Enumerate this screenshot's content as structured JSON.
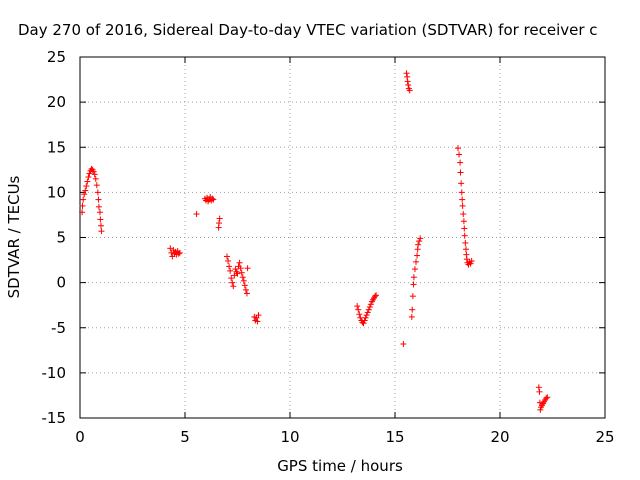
{
  "chart_data": {
    "type": "scatter",
    "title": "Day 270 of 2016, Sidereal Day-to-day VTEC variation (SDTVAR) for receiver c",
    "xlabel": "GPS time / hours",
    "ylabel": "SDTVAR / TECUs",
    "xlim": [
      0,
      25
    ],
    "ylim": [
      -15,
      25
    ],
    "x_ticks": [
      "0",
      "5",
      "10",
      "15",
      "20",
      "25"
    ],
    "y_ticks": [
      "-15",
      "-10",
      "-5",
      "0",
      "5",
      "10",
      "15",
      "20",
      "25"
    ],
    "grid": true,
    "marker": "plus",
    "marker_color": "#ff0000",
    "series": [
      {
        "points": [
          [
            0.1,
            7.8
          ],
          [
            0.12,
            8.5
          ],
          [
            0.15,
            9.2
          ],
          [
            0.2,
            9.8
          ],
          [
            0.25,
            10.2
          ],
          [
            0.3,
            10.7
          ],
          [
            0.35,
            11.2
          ],
          [
            0.4,
            11.7
          ],
          [
            0.45,
            12.1
          ],
          [
            0.5,
            12.4
          ],
          [
            0.55,
            12.6
          ],
          [
            0.6,
            12.5
          ],
          [
            0.65,
            12.3
          ],
          [
            0.7,
            12.0
          ],
          [
            0.75,
            11.5
          ],
          [
            0.8,
            10.8
          ],
          [
            0.85,
            10.0
          ],
          [
            0.88,
            9.2
          ],
          [
            0.9,
            8.4
          ],
          [
            0.95,
            7.8
          ],
          [
            0.97,
            7.0
          ],
          [
            1.0,
            6.3
          ],
          [
            1.02,
            5.7
          ],
          [
            4.3,
            3.8
          ],
          [
            4.35,
            3.3
          ],
          [
            4.4,
            2.9
          ],
          [
            4.45,
            3.6
          ],
          [
            4.5,
            3.2
          ],
          [
            4.55,
            3.4
          ],
          [
            4.6,
            3.1
          ],
          [
            4.65,
            3.5
          ],
          [
            4.7,
            3.2
          ],
          [
            4.75,
            3.3
          ],
          [
            5.55,
            7.6
          ],
          [
            5.95,
            9.3
          ],
          [
            6.0,
            9.1
          ],
          [
            6.05,
            9.4
          ],
          [
            6.1,
            9.0
          ],
          [
            6.15,
            9.2
          ],
          [
            6.2,
            9.5
          ],
          [
            6.25,
            9.1
          ],
          [
            6.3,
            9.3
          ],
          [
            6.35,
            9.2
          ],
          [
            6.6,
            6.1
          ],
          [
            6.62,
            6.6
          ],
          [
            6.65,
            7.1
          ],
          [
            7.0,
            2.9
          ],
          [
            7.05,
            2.4
          ],
          [
            7.1,
            1.8
          ],
          [
            7.15,
            1.3
          ],
          [
            7.2,
            0.5
          ],
          [
            7.25,
            0.0
          ],
          [
            7.3,
            -0.4
          ],
          [
            7.35,
            0.8
          ],
          [
            7.4,
            1.5
          ],
          [
            7.45,
            1.2
          ],
          [
            7.5,
            1.0
          ],
          [
            7.55,
            1.8
          ],
          [
            7.6,
            2.2
          ],
          [
            7.65,
            1.6
          ],
          [
            7.7,
            1.1
          ],
          [
            7.75,
            0.6
          ],
          [
            7.8,
            0.2
          ],
          [
            7.85,
            -0.3
          ],
          [
            7.9,
            -0.8
          ],
          [
            7.95,
            -1.2
          ],
          [
            7.98,
            1.6
          ],
          [
            8.3,
            -3.8
          ],
          [
            8.35,
            -4.2
          ],
          [
            8.4,
            -3.9
          ],
          [
            8.45,
            -4.3
          ],
          [
            8.5,
            -3.6
          ],
          [
            13.2,
            -2.6
          ],
          [
            13.25,
            -3.0
          ],
          [
            13.3,
            -3.5
          ],
          [
            13.35,
            -3.9
          ],
          [
            13.4,
            -4.2
          ],
          [
            13.45,
            -4.4
          ],
          [
            13.5,
            -4.5
          ],
          [
            13.55,
            -4.2
          ],
          [
            13.6,
            -3.9
          ],
          [
            13.65,
            -3.6
          ],
          [
            13.7,
            -3.3
          ],
          [
            13.75,
            -3.0
          ],
          [
            13.8,
            -2.7
          ],
          [
            13.85,
            -2.4
          ],
          [
            13.9,
            -2.1
          ],
          [
            13.95,
            -1.9
          ],
          [
            14.0,
            -1.7
          ],
          [
            14.05,
            -1.5
          ],
          [
            14.1,
            -1.4
          ],
          [
            15.4,
            -6.8
          ],
          [
            15.55,
            23.2
          ],
          [
            15.58,
            22.8
          ],
          [
            15.6,
            22.3
          ],
          [
            15.63,
            21.9
          ],
          [
            15.66,
            21.5
          ],
          [
            15.7,
            21.3
          ],
          [
            15.8,
            -3.8
          ],
          [
            15.82,
            -3.0
          ],
          [
            15.85,
            -1.5
          ],
          [
            15.88,
            -0.2
          ],
          [
            15.9,
            0.6
          ],
          [
            15.95,
            1.5
          ],
          [
            16.0,
            2.3
          ],
          [
            16.05,
            3.0
          ],
          [
            16.08,
            3.7
          ],
          [
            16.1,
            4.2
          ],
          [
            16.15,
            4.6
          ],
          [
            16.2,
            4.9
          ],
          [
            18.0,
            14.9
          ],
          [
            18.05,
            14.2
          ],
          [
            18.1,
            13.3
          ],
          [
            18.12,
            12.2
          ],
          [
            18.15,
            11.0
          ],
          [
            18.18,
            10.0
          ],
          [
            18.2,
            9.2
          ],
          [
            18.22,
            8.5
          ],
          [
            18.25,
            7.6
          ],
          [
            18.28,
            6.8
          ],
          [
            18.3,
            6.0
          ],
          [
            18.32,
            5.2
          ],
          [
            18.35,
            4.4
          ],
          [
            18.38,
            3.7
          ],
          [
            18.4,
            3.1
          ],
          [
            18.42,
            2.6
          ],
          [
            18.45,
            2.2
          ],
          [
            18.5,
            2.0
          ],
          [
            18.55,
            2.3
          ],
          [
            18.6,
            2.1
          ],
          [
            18.65,
            2.4
          ],
          [
            21.85,
            -11.6
          ],
          [
            21.88,
            -12.1
          ],
          [
            21.9,
            -13.3
          ],
          [
            21.92,
            -14.1
          ],
          [
            21.95,
            -13.8
          ],
          [
            22.0,
            -13.6
          ],
          [
            22.05,
            -13.4
          ],
          [
            22.1,
            -13.2
          ],
          [
            22.15,
            -13.0
          ],
          [
            22.2,
            -12.8
          ],
          [
            22.25,
            -12.7
          ]
        ]
      }
    ]
  }
}
